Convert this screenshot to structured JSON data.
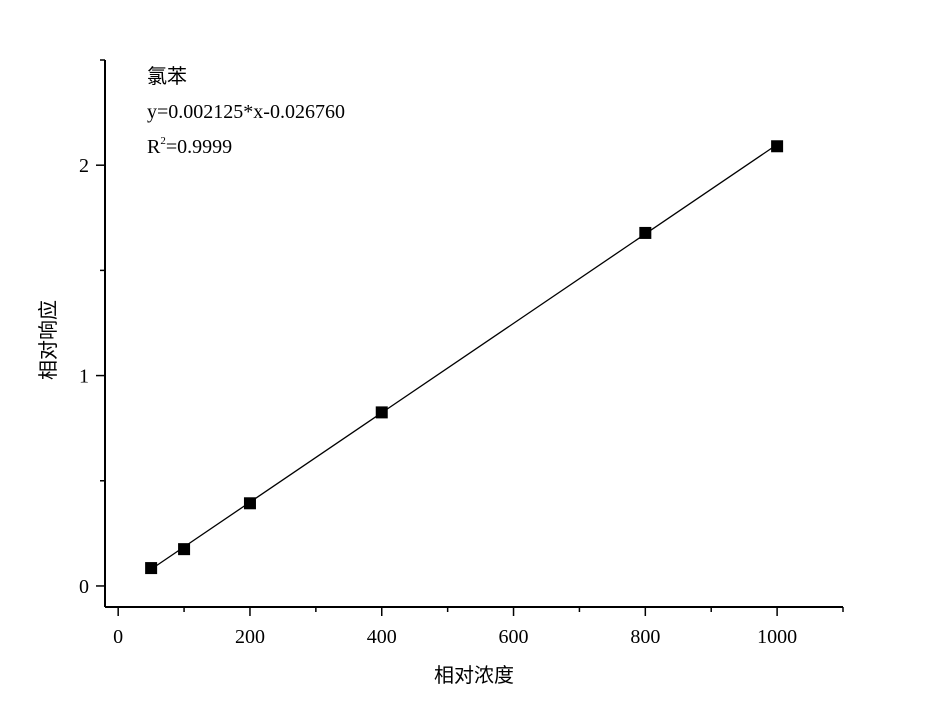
{
  "chart_data": {
    "type": "scatter",
    "title": "",
    "xlabel": "相对浓度",
    "ylabel": "相对响应",
    "xlim": [
      -20,
      1100
    ],
    "ylim": [
      -0.1,
      2.5
    ],
    "xticks": [
      0,
      200,
      400,
      600,
      800,
      1000
    ],
    "xtick_labels": [
      "0",
      "200",
      "400",
      "600",
      "800",
      "1000"
    ],
    "xminor": [
      100,
      300,
      500,
      700,
      900,
      1100
    ],
    "yticks": [
      0,
      1,
      2
    ],
    "ytick_labels": [
      "0",
      "1",
      "2"
    ],
    "yminor": [
      0.5,
      1.5,
      2.5
    ],
    "grid": false,
    "series": [
      {
        "x": [
          50,
          100,
          200,
          400,
          800,
          1000
        ],
        "y": [
          0.085,
          0.175,
          0.393,
          0.825,
          1.678,
          2.09
        ],
        "marker": "square",
        "color": "#000000"
      }
    ],
    "fit": {
      "slope": 0.002125,
      "intercept": -0.02676,
      "x_range": [
        50,
        1000
      ],
      "color": "#000000"
    },
    "annotations": {
      "compound": "氯苯",
      "equation": "y=0.002125*x-0.026760",
      "r2_prefix": "R",
      "r2_sup": "2",
      "r2_value": "=0.9999"
    }
  }
}
